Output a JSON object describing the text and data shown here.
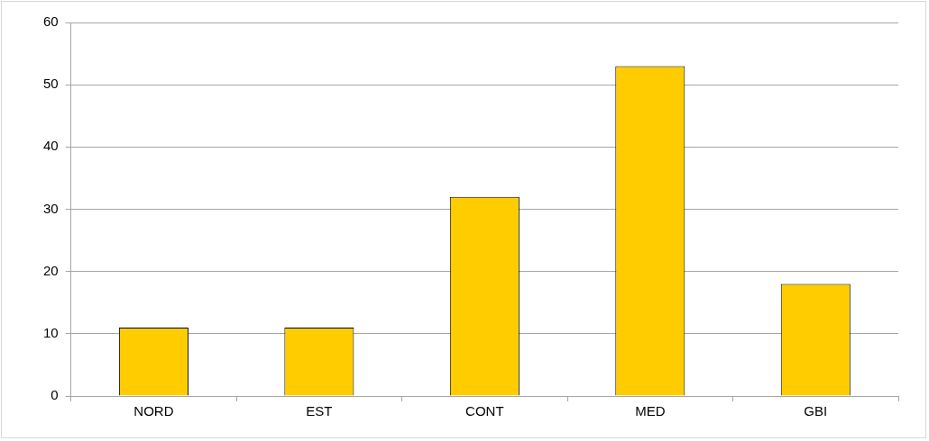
{
  "chart_data": {
    "type": "bar",
    "categories": [
      "NORD",
      "EST",
      "CONT",
      "MED",
      "GBI"
    ],
    "values": [
      11,
      11,
      32,
      53,
      18
    ],
    "color": "#ffcc00",
    "ylim": [
      0,
      60
    ],
    "yticks": [
      0,
      10,
      20,
      30,
      40,
      50,
      60
    ],
    "grid": "y"
  }
}
